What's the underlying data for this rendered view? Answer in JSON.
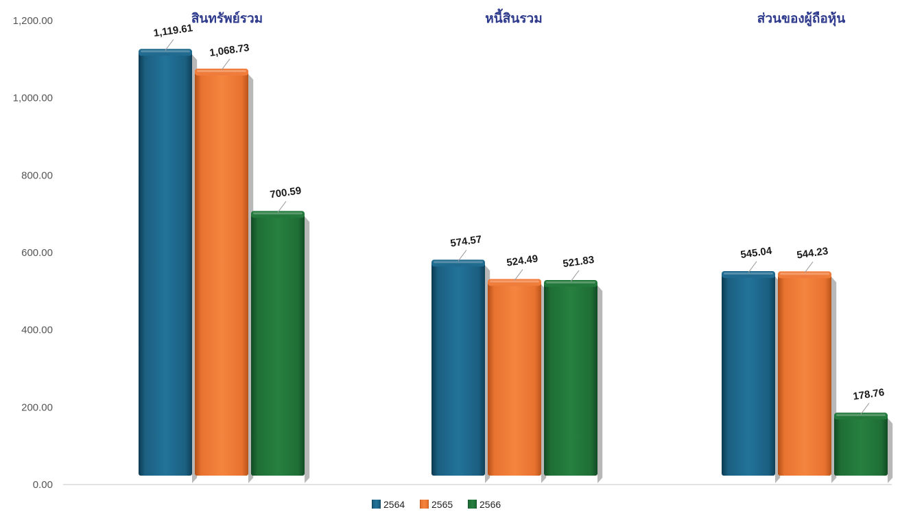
{
  "chart_data": {
    "type": "bar",
    "categories": [
      "สินทรัพย์รวม",
      "หนี้สินรวม",
      "ส่วนของผู้ถือหุ้น"
    ],
    "series": [
      {
        "name": "2564",
        "values": [
          1119.61,
          574.57,
          545.04
        ],
        "labels": [
          "1,119.61",
          "574.57",
          "545.04"
        ]
      },
      {
        "name": "2565",
        "values": [
          1068.73,
          524.49,
          544.23
        ],
        "labels": [
          "1,068.73",
          "524.49",
          "544.23"
        ]
      },
      {
        "name": "2566",
        "values": [
          700.59,
          521.83,
          178.76
        ],
        "labels": [
          "700.59",
          "521.83",
          "178.76"
        ]
      }
    ],
    "ylim": [
      0,
      1200
    ],
    "yticks": [
      "0.00",
      "200.00",
      "400.00",
      "600.00",
      "800.00",
      "1,000.00",
      "1,200.00"
    ],
    "xlabel": "",
    "ylabel": "",
    "grid": false,
    "legend_position": "bottom",
    "style": "3d-cylinder-bars"
  },
  "colors": {
    "2564": "#1f6a8e",
    "2565": "#f07c3c",
    "2566": "#23793c",
    "category_title": "#2e3a8c",
    "axis_text": "#555555",
    "value_label": "#1a1a1a"
  }
}
